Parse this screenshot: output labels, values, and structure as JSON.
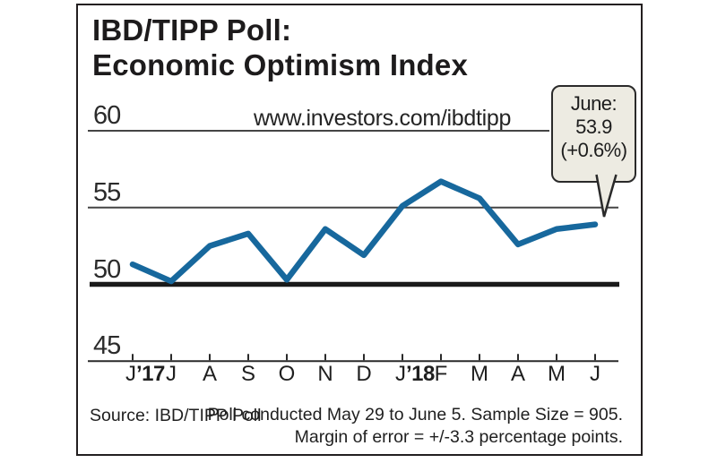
{
  "title": {
    "line1": "IBD/TIPP Poll:",
    "line2": "Economic Optimism Index"
  },
  "url_text": "www.investors.com/ibdtipp",
  "callout": {
    "month": "June:",
    "value": "53.9",
    "change": "(+0.6%)"
  },
  "footer": {
    "source": "Source: IBD/TIPP Poll",
    "note_line1": "Poll conducted May 29 to June 5. Sample Size = 905.",
    "note_line2": "Margin of error = +/-3.3 percentage points."
  },
  "colors": {
    "line": "#17689d",
    "grid": "#454545",
    "baseline": "#1a1a1a",
    "axis": "#2a2a2a",
    "frame": "#231f20",
    "callout_bg": "#edebe2",
    "callout_border": "#2a2a2a"
  },
  "x_axis": {
    "months": [
      {
        "m": "J",
        "year": "’17"
      },
      {
        "m": "J"
      },
      {
        "m": "A"
      },
      {
        "m": "S"
      },
      {
        "m": "O"
      },
      {
        "m": "N"
      },
      {
        "m": "D"
      },
      {
        "m": "J",
        "year": "’18"
      },
      {
        "m": "F"
      },
      {
        "m": "M"
      },
      {
        "m": "A"
      },
      {
        "m": "M"
      },
      {
        "m": "J"
      }
    ]
  },
  "chart_data": {
    "type": "line",
    "title": "IBD/TIPP Poll: Economic Optimism Index",
    "x_labels": [
      "J ’17",
      "J",
      "A",
      "S",
      "O",
      "N",
      "D",
      "J ’18",
      "F",
      "M",
      "A",
      "M",
      "J"
    ],
    "values": [
      51.3,
      50.2,
      52.5,
      53.3,
      50.3,
      53.6,
      51.9,
      55.1,
      56.7,
      55.6,
      52.6,
      53.6,
      53.9
    ],
    "series_name": "Economic Optimism Index",
    "y_ticks": [
      60,
      55,
      50,
      45
    ],
    "ylim": [
      45,
      60
    ],
    "baseline": 50,
    "grid": true,
    "legend": false,
    "annotation": {
      "target_x": "J ’18 (June 2018)",
      "text": "June: 53.9 (+0.6%)"
    }
  }
}
